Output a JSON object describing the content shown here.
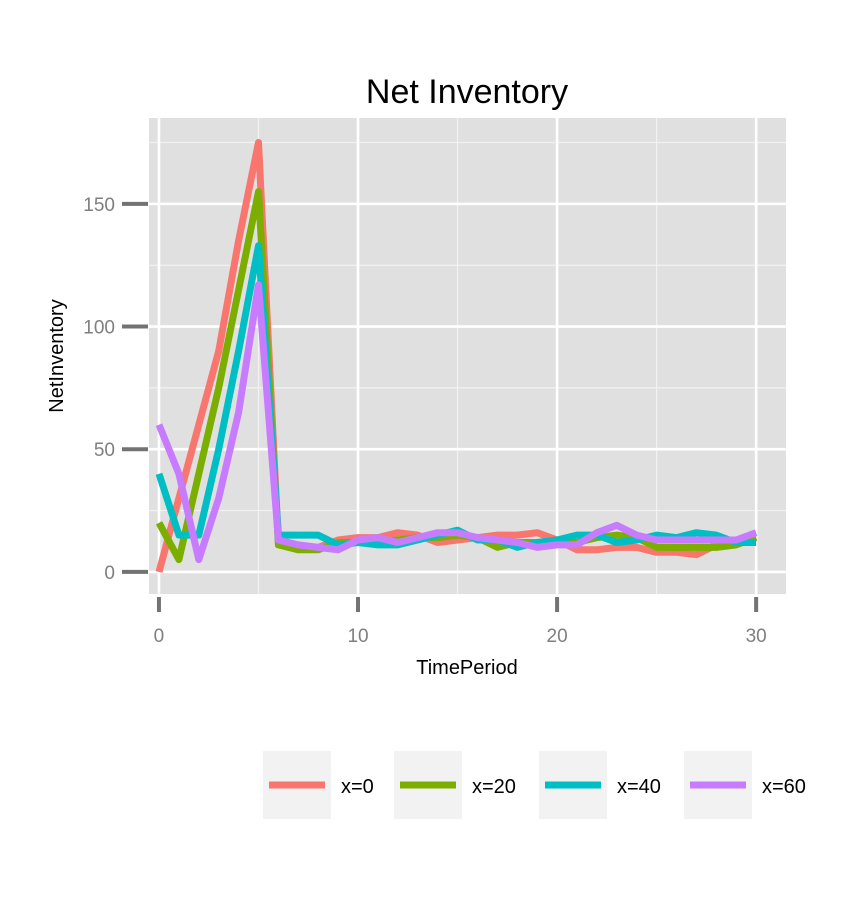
{
  "chart_data": {
    "type": "line",
    "title": "Net Inventory",
    "xlabel": "TimePeriod",
    "ylabel": "NetInventory",
    "xlim": [
      -0.5,
      31.5
    ],
    "ylim": [
      -9,
      185
    ],
    "x_ticks": [
      0,
      10,
      20,
      30
    ],
    "y_ticks": [
      0,
      50,
      100,
      150
    ],
    "grid": true,
    "legend_position": "bottom",
    "background": "#e0e0e0",
    "x": [
      0,
      1,
      2,
      3,
      4,
      5,
      6,
      7,
      8,
      9,
      10,
      11,
      12,
      13,
      14,
      15,
      16,
      17,
      18,
      19,
      20,
      21,
      22,
      23,
      24,
      25,
      26,
      27,
      28,
      29,
      30
    ],
    "series": [
      {
        "name": "x=0",
        "color": "#f8766d",
        "values": [
          0,
          30,
          60,
          90,
          135,
          175,
          12,
          10,
          10,
          13,
          14,
          14,
          16,
          15,
          12,
          13,
          14,
          15,
          15,
          16,
          13,
          9,
          9,
          10,
          10,
          8,
          8,
          7,
          11,
          12,
          14
        ]
      },
      {
        "name": "x=20",
        "color": "#7cae00",
        "values": [
          20,
          5,
          40,
          75,
          115,
          155,
          11,
          9,
          9,
          12,
          12,
          12,
          13,
          14,
          14,
          15,
          14,
          10,
          12,
          12,
          12,
          12,
          14,
          15,
          14,
          10,
          10,
          10,
          10,
          11,
          14
        ]
      },
      {
        "name": "x=40",
        "color": "#00bfc4",
        "values": [
          40,
          15,
          15,
          50,
          90,
          133,
          15,
          15,
          15,
          11,
          12,
          11,
          11,
          13,
          15,
          17,
          13,
          13,
          10,
          12,
          13,
          15,
          15,
          12,
          13,
          15,
          14,
          16,
          15,
          12,
          12
        ]
      },
      {
        "name": "x=60",
        "color": "#c77cff",
        "values": [
          60,
          40,
          5,
          30,
          65,
          117,
          13,
          11,
          10,
          9,
          13,
          14,
          12,
          14,
          16,
          16,
          14,
          13,
          12,
          10,
          11,
          11,
          16,
          19,
          15,
          13,
          13,
          13,
          13,
          13,
          16
        ]
      }
    ]
  }
}
